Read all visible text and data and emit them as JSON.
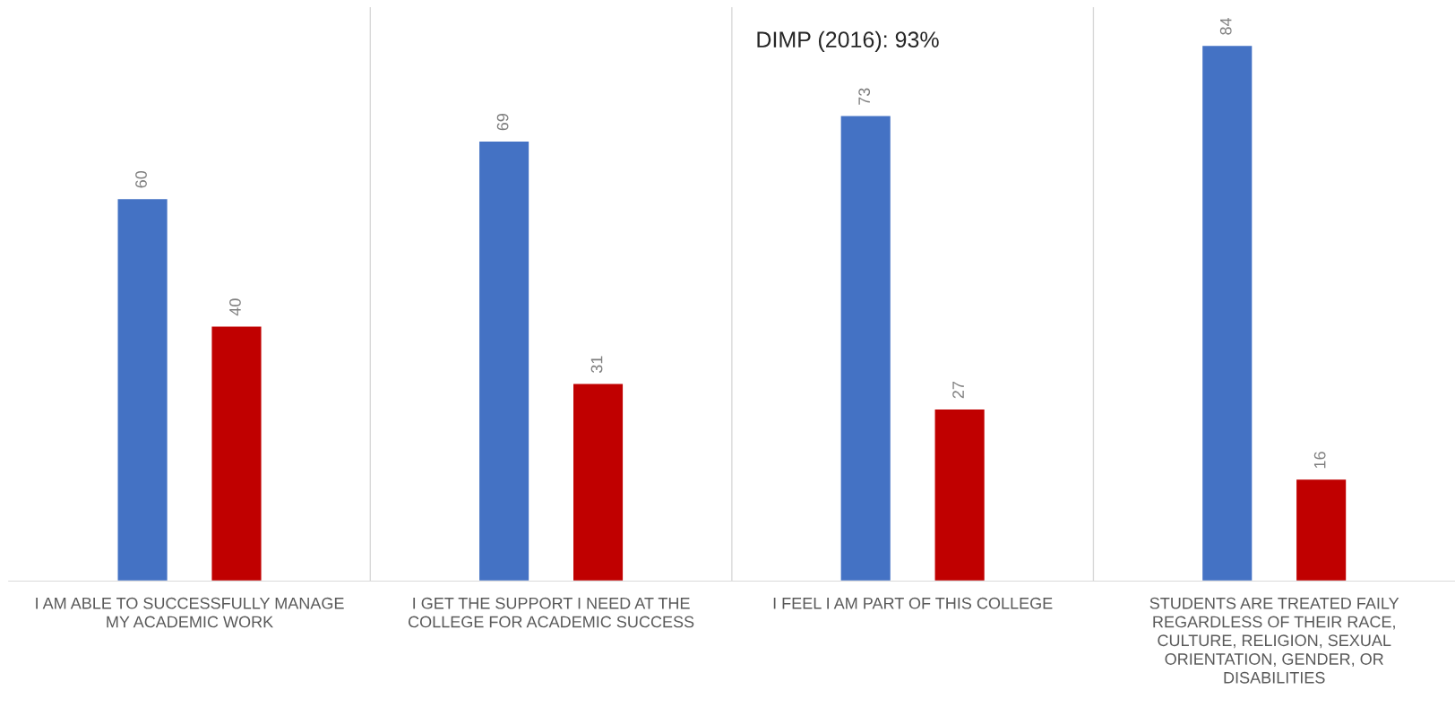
{
  "chart_data": {
    "type": "bar",
    "categories": [
      "I AM ABLE TO SUCCESSFULLY MANAGE MY ACADEMIC WORK",
      "I GET THE SUPPORT I NEED AT THE COLLEGE FOR ACADEMIC SUCCESS",
      "I FEEL I AM PART OF THIS COLLEGE",
      "STUDENTS ARE TREATED FAILY REGARDLESS OF THEIR RACE, CULTURE, RELIGION, SEXUAL ORIENTATION, GENDER, OR DISABILITIES"
    ],
    "series": [
      {
        "color": "#4472c4",
        "values": [
          60,
          69,
          73,
          84
        ]
      },
      {
        "color": "#c00000",
        "values": [
          40,
          31,
          27,
          16
        ]
      }
    ],
    "ylim": [
      0,
      90
    ],
    "data_labels": true,
    "grid": "x",
    "tick_labels": "x",
    "legend": false,
    "annotations": [
      "DIMP (2016): 93%"
    ]
  }
}
